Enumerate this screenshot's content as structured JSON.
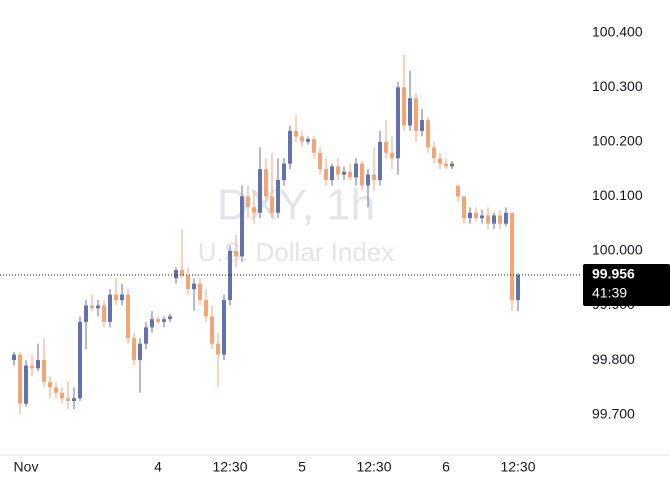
{
  "chart_data": {
    "type": "candlestick",
    "watermark_title": "DXY, 1h",
    "watermark_subtitle": "U.S. Dollar Index",
    "countdown": "41:39",
    "up_color": "#6272ad",
    "down_color": "#f5a575",
    "ylim": [
      99.626,
      100.46
    ],
    "yticks": [
      {
        "value": 99.7,
        "label": "99.700"
      },
      {
        "value": 99.8,
        "label": "99.800"
      },
      {
        "value": 99.9,
        "label": "99.900"
      },
      {
        "value": 100.0,
        "label": "100.000"
      },
      {
        "value": 100.1,
        "label": "100.100"
      },
      {
        "value": 100.2,
        "label": "100.200"
      },
      {
        "value": 100.3,
        "label": "100.300"
      },
      {
        "value": 100.4,
        "label": "100.400"
      }
    ],
    "categories": [
      null,
      null,
      "Nov",
      null,
      null,
      null,
      null,
      null,
      null,
      null,
      null,
      null,
      null,
      null,
      null,
      null,
      null,
      null,
      null,
      null,
      null,
      null,
      null,
      null,
      "4",
      null,
      null,
      null,
      null,
      null,
      null,
      null,
      null,
      null,
      null,
      null,
      "12:30",
      null,
      null,
      null,
      null,
      null,
      null,
      null,
      null,
      null,
      null,
      null,
      "5",
      null,
      null,
      null,
      null,
      null,
      null,
      null,
      null,
      null,
      null,
      null,
      "12:30",
      null,
      null,
      null,
      null,
      null,
      null,
      null,
      null,
      null,
      null,
      null,
      "6",
      null,
      null,
      null,
      null,
      null,
      null,
      null,
      null,
      null,
      null,
      null,
      "12:30"
    ],
    "open": [
      99.8,
      99.81,
      99.72,
      99.79,
      99.785,
      99.8,
      99.76,
      99.75,
      99.74,
      99.73,
      99.725,
      99.73,
      99.87,
      99.9,
      99.895,
      99.9,
      99.87,
      99.92,
      99.91,
      99.92,
      99.84,
      99.8,
      99.83,
      99.86,
      99.875,
      99.87,
      99.875,
      99.95,
      99.965,
      99.955,
      99.93,
      99.94,
      99.91,
      99.88,
      99.83,
      99.81,
      99.91,
      100.0,
      99.99,
      100.1,
      100.08,
      100.07,
      100.15,
      100.1,
      100.07,
      100.13,
      100.16,
      100.22,
      100.21,
      100.2,
      100.205,
      100.18,
      100.15,
      100.13,
      100.155,
      100.14,
      100.145,
      100.135,
      100.16,
      100.12,
      100.14,
      100.13,
      100.2,
      100.18,
      100.17,
      100.3,
      100.23,
      100.28,
      100.22,
      100.24,
      100.19,
      100.17,
      100.16,
      100.155,
      100.12,
      100.1,
      100.06,
      100.07,
      100.06,
      100.065,
      100.05,
      100.065,
      100.05,
      100.07,
      99.91
    ],
    "high": [
      99.815,
      99.815,
      99.8,
      99.81,
      99.83,
      99.84,
      99.77,
      99.76,
      99.75,
      99.76,
      99.75,
      99.88,
      99.91,
      99.92,
      99.91,
      99.91,
      99.93,
      99.95,
      99.94,
      99.93,
      99.85,
      99.84,
      99.87,
      99.89,
      99.88,
      99.88,
      99.885,
      99.97,
      100.04,
      99.97,
      99.95,
      99.95,
      99.93,
      99.9,
      99.85,
      99.92,
      100.01,
      100.03,
      100.12,
      100.12,
      100.11,
      100.19,
      100.17,
      100.18,
      100.17,
      100.17,
      100.23,
      100.25,
      100.22,
      100.21,
      100.21,
      100.19,
      100.17,
      100.16,
      100.17,
      100.155,
      100.16,
      100.17,
      100.165,
      100.15,
      100.19,
      100.22,
      100.24,
      100.21,
      100.31,
      100.36,
      100.33,
      100.29,
      100.26,
      100.245,
      100.2,
      100.18,
      100.17,
      100.165,
      100.12,
      100.1,
      100.08,
      100.08,
      100.075,
      100.08,
      100.07,
      100.075,
      100.08,
      100.07,
      99.96
    ],
    "low": [
      99.79,
      99.7,
      99.715,
      99.77,
      99.78,
      99.75,
      99.73,
      99.73,
      99.72,
      99.71,
      99.71,
      99.725,
      99.82,
      99.89,
      99.88,
      99.86,
      99.86,
      99.9,
      99.9,
      99.83,
      99.79,
      99.74,
      99.82,
      99.85,
      99.865,
      99.86,
      99.87,
      99.94,
      99.95,
      99.92,
      99.89,
      99.9,
      99.87,
      99.82,
      99.75,
      99.8,
      99.9,
      99.97,
      99.98,
      100.06,
      100.05,
      100.06,
      100.09,
      100.06,
      100.06,
      100.12,
      100.15,
      100.2,
      100.19,
      100.195,
      100.17,
      100.14,
      100.12,
      100.12,
      100.13,
      100.13,
      100.13,
      100.12,
      100.11,
      100.08,
      100.11,
      100.12,
      100.17,
      100.15,
      100.14,
      100.22,
      100.22,
      100.2,
      100.21,
      100.18,
      100.16,
      100.15,
      100.15,
      100.15,
      100.09,
      100.05,
      100.05,
      100.055,
      100.05,
      100.04,
      100.04,
      100.04,
      100.045,
      99.89,
      99.89
    ],
    "close": [
      99.81,
      99.72,
      99.79,
      99.785,
      99.8,
      99.76,
      99.75,
      99.74,
      99.73,
      99.725,
      99.73,
      99.87,
      99.9,
      99.895,
      99.9,
      99.87,
      99.92,
      99.91,
      99.92,
      99.84,
      99.8,
      99.83,
      99.86,
      99.875,
      99.87,
      99.875,
      99.88,
      99.965,
      99.955,
      99.93,
      99.94,
      99.91,
      99.88,
      99.83,
      99.81,
      99.91,
      100.0,
      99.99,
      100.1,
      100.08,
      100.07,
      100.15,
      100.1,
      100.07,
      100.13,
      100.16,
      100.22,
      100.21,
      100.2,
      100.205,
      100.18,
      100.15,
      100.13,
      100.155,
      100.14,
      100.145,
      100.135,
      100.16,
      100.12,
      100.14,
      100.13,
      100.2,
      100.18,
      100.17,
      100.3,
      100.23,
      100.28,
      100.22,
      100.24,
      100.19,
      100.17,
      100.16,
      100.155,
      100.16,
      100.1,
      100.06,
      100.07,
      100.06,
      100.065,
      100.05,
      100.065,
      100.05,
      100.07,
      99.91,
      99.956
    ]
  }
}
